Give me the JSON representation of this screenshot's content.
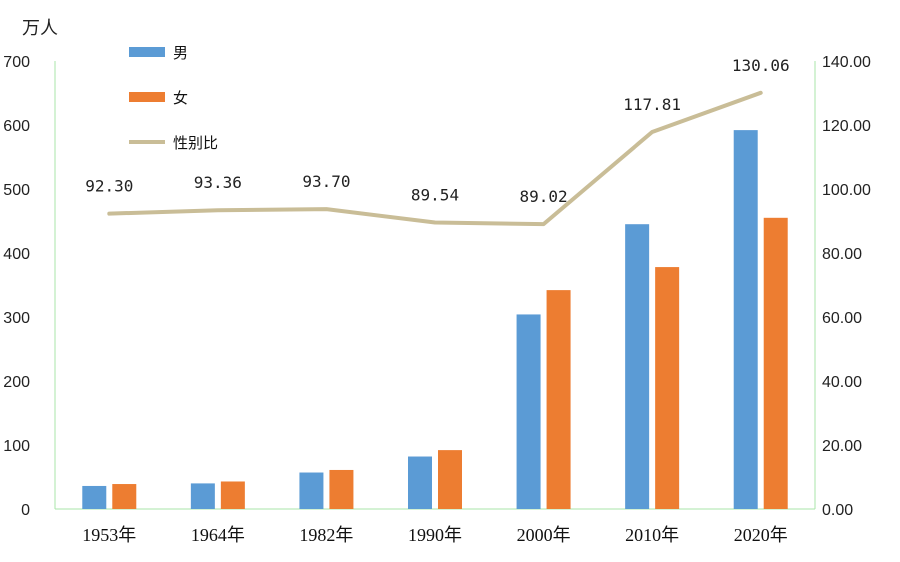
{
  "chart_data": {
    "type": "bar",
    "categories": [
      "1953年",
      "1964年",
      "1982年",
      "1990年",
      "2000年",
      "2010年",
      "2020年"
    ],
    "series": [
      {
        "name": "男",
        "type": "bar",
        "axis": "left",
        "color": "#5b9bd5",
        "values": [
          36,
          40,
          57,
          82,
          304,
          445,
          592
        ]
      },
      {
        "name": "女",
        "type": "bar",
        "axis": "left",
        "color": "#ed7d31",
        "values": [
          39,
          43,
          61,
          92,
          342,
          378,
          455
        ]
      },
      {
        "name": "性别比",
        "type": "line",
        "axis": "right",
        "color": "#c9bd97",
        "values": [
          92.3,
          93.36,
          93.7,
          89.54,
          89.02,
          117.81,
          130.06
        ],
        "labels": [
          "92.30",
          "93.36",
          "93.70",
          "89.54",
          "89.02",
          "117.81",
          "130.06"
        ]
      }
    ],
    "y_left": {
      "unit_label": "万人",
      "ylim": [
        0,
        700
      ],
      "ticks": [
        "0",
        "100",
        "200",
        "300",
        "400",
        "500",
        "600",
        "700"
      ]
    },
    "y_right": {
      "ylim": [
        0,
        140
      ],
      "ticks": [
        "0.00",
        "20.00",
        "40.00",
        "60.00",
        "80.00",
        "100.00",
        "120.00",
        "140.00"
      ]
    },
    "legend": {
      "position": "top-left",
      "entries": [
        "男",
        "女",
        "性别比"
      ]
    },
    "grid": false,
    "axis_line_color": "#a8e6a8"
  }
}
